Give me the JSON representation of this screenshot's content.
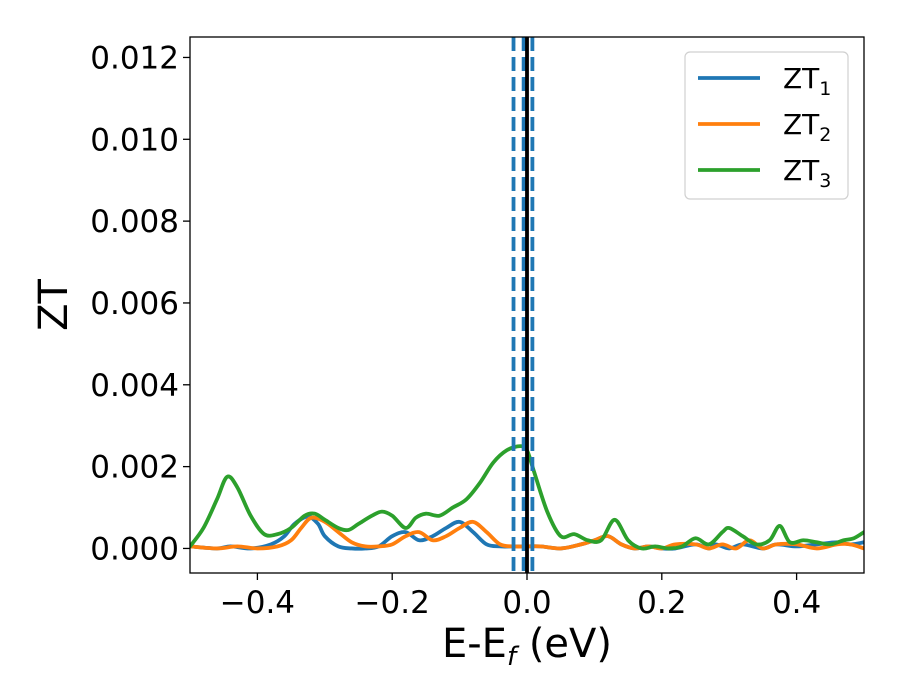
{
  "chart_data": {
    "type": "line",
    "xlabel": {
      "main": "E-E",
      "sub": "f",
      "rest": " (eV)"
    },
    "ylabel": "ZT",
    "xlim": [
      -0.5,
      0.5
    ],
    "ylim": [
      -0.0006,
      0.0125
    ],
    "xticks": [
      -0.4,
      -0.2,
      0.0,
      0.2,
      0.4
    ],
    "xtick_labels": [
      "−0.4",
      "−0.2",
      "0.0",
      "0.2",
      "0.4"
    ],
    "yticks": [
      0.0,
      0.002,
      0.004,
      0.006,
      0.008,
      0.01,
      0.012
    ],
    "ytick_labels": [
      "0.000",
      "0.002",
      "0.004",
      "0.006",
      "0.008",
      "0.010",
      "0.012"
    ],
    "grid": false,
    "legend_position": "top-right",
    "vertical_lines": [
      {
        "x": -0.02,
        "style": "dashed",
        "color": "#1f77b4"
      },
      {
        "x": 0.008,
        "style": "dashed",
        "color": "#1f77b4"
      },
      {
        "x": -0.005,
        "style": "dashed",
        "color": "#1f77b4"
      },
      {
        "x": 0.0,
        "style": "solid",
        "color": "#000000"
      }
    ],
    "series": [
      {
        "name": "ZT",
        "name_sub": "1",
        "color": "#1f77b4",
        "x": [
          -0.5,
          -0.46,
          -0.44,
          -0.41,
          -0.38,
          -0.36,
          -0.345,
          -0.325,
          -0.31,
          -0.3,
          -0.28,
          -0.26,
          -0.24,
          -0.22,
          -0.2,
          -0.18,
          -0.16,
          -0.14,
          -0.12,
          -0.1,
          -0.08,
          -0.06,
          -0.04,
          -0.02,
          0.0,
          0.02,
          0.05,
          0.08,
          0.1,
          0.12,
          0.14,
          0.16,
          0.18,
          0.2,
          0.22,
          0.25,
          0.27,
          0.28,
          0.3,
          0.32,
          0.35,
          0.37,
          0.4,
          0.43,
          0.46,
          0.48,
          0.5
        ],
        "y": [
          5e-05,
          0.0,
          5e-05,
          0.0,
          0.0001,
          0.0003,
          0.0006,
          0.00078,
          0.0006,
          0.0003,
          5e-05,
          0.0,
          0.0,
          5e-05,
          0.0003,
          0.0004,
          0.0002,
          0.0003,
          0.0005,
          0.00065,
          0.0004,
          0.0001,
          5e-05,
          5e-05,
          5e-05,
          5e-05,
          0.0,
          0.0001,
          0.0002,
          0.0003,
          0.0001,
          0.0,
          5e-05,
          0.0,
          0.0,
          0.0001,
          0.0,
          0.0001,
          0.0,
          0.0001,
          0.0,
          0.0001,
          5e-05,
          0.0001,
          0.00015,
          0.0001,
          0.00015
        ]
      },
      {
        "name": "ZT",
        "name_sub": "2",
        "color": "#ff7f0e",
        "x": [
          -0.5,
          -0.46,
          -0.43,
          -0.4,
          -0.37,
          -0.35,
          -0.335,
          -0.32,
          -0.3,
          -0.28,
          -0.26,
          -0.24,
          -0.22,
          -0.2,
          -0.18,
          -0.16,
          -0.14,
          -0.12,
          -0.1,
          -0.08,
          -0.06,
          -0.04,
          -0.02,
          0.0,
          0.02,
          0.05,
          0.08,
          0.1,
          0.12,
          0.14,
          0.16,
          0.18,
          0.2,
          0.22,
          0.25,
          0.27,
          0.29,
          0.31,
          0.33,
          0.35,
          0.37,
          0.4,
          0.43,
          0.46,
          0.48,
          0.5
        ],
        "y": [
          5e-05,
          0.0,
          5e-05,
          0.0,
          5e-05,
          0.0002,
          0.0005,
          0.00075,
          0.00065,
          0.0004,
          0.00015,
          5e-05,
          5e-05,
          0.0001,
          0.0003,
          0.0004,
          0.0002,
          0.0003,
          0.0005,
          0.00065,
          0.0004,
          0.0001,
          5e-05,
          5e-05,
          5e-05,
          0.0,
          0.0001,
          0.0002,
          0.0003,
          0.0001,
          0.0,
          5e-05,
          0.0,
          0.0001,
          0.0001,
          0.0,
          0.0001,
          0.0,
          0.0002,
          0.0,
          0.0001,
          0.0001,
          0.0,
          0.0001,
          0.0001,
          0.0
        ]
      },
      {
        "name": "ZT",
        "name_sub": "3",
        "color": "#2ca02c",
        "x": [
          -0.5,
          -0.48,
          -0.46,
          -0.445,
          -0.43,
          -0.41,
          -0.39,
          -0.37,
          -0.35,
          -0.33,
          -0.315,
          -0.3,
          -0.28,
          -0.265,
          -0.25,
          -0.23,
          -0.215,
          -0.2,
          -0.18,
          -0.165,
          -0.15,
          -0.13,
          -0.11,
          -0.09,
          -0.07,
          -0.05,
          -0.03,
          -0.01,
          0.0,
          0.01,
          0.03,
          0.05,
          0.07,
          0.09,
          0.11,
          0.13,
          0.15,
          0.17,
          0.19,
          0.21,
          0.23,
          0.25,
          0.27,
          0.29,
          0.3,
          0.32,
          0.34,
          0.36,
          0.375,
          0.39,
          0.41,
          0.43,
          0.45,
          0.47,
          0.485,
          0.5
        ],
        "y": [
          5e-05,
          0.0005,
          0.0012,
          0.00175,
          0.0015,
          0.0008,
          0.00035,
          0.00035,
          0.0005,
          0.0008,
          0.00085,
          0.0007,
          0.0005,
          0.00045,
          0.0006,
          0.0008,
          0.0009,
          0.0008,
          0.0005,
          0.00075,
          0.00085,
          0.0008,
          0.001,
          0.0012,
          0.0016,
          0.0021,
          0.0024,
          0.0025,
          0.0024,
          0.0019,
          0.0009,
          0.0003,
          0.00035,
          0.0002,
          0.0002,
          0.0007,
          0.0002,
          0.0,
          5e-05,
          0.0,
          5e-05,
          0.00025,
          0.0001,
          0.0004,
          0.0005,
          0.0003,
          0.0001,
          0.0002,
          0.00055,
          0.00015,
          0.0002,
          0.00015,
          0.0001,
          0.0002,
          0.00025,
          0.0004
        ]
      }
    ]
  }
}
